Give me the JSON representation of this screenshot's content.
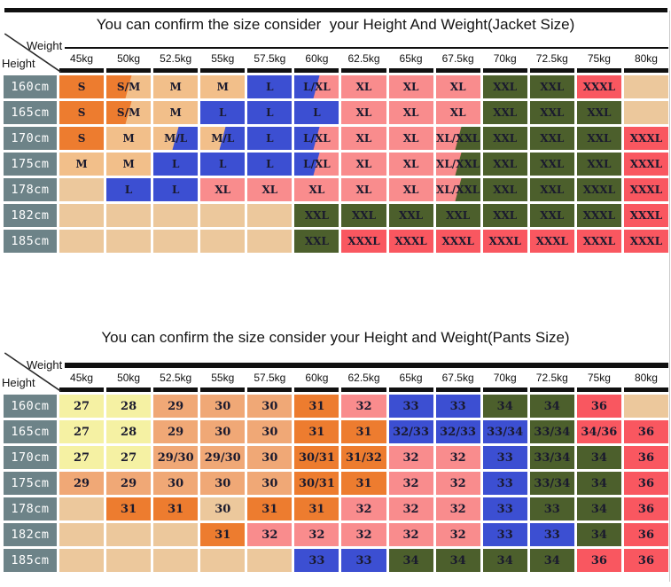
{
  "palette": {
    "orange": "#ed7c2f",
    "tan": "#f2bf8a",
    "sand": "#ecc89c",
    "blue": "#3c4fd2",
    "pink": "#f98c8d",
    "green": "#4c5f2c",
    "red": "#f95760",
    "yellow": "#f5f1a3",
    "salmon": "#f0a876",
    "slate": "#6d8388",
    "line": "#101010"
  },
  "chart_data": [
    {
      "type": "table",
      "title": "You can confirm the size consider  your Height And Weight(Jacket Size)",
      "corner": {
        "weight": "Weight",
        "height": "Height"
      },
      "columns": [
        "45kg",
        "50kg",
        "52.5kg",
        "55kg",
        "57.5kg",
        "60kg",
        "62.5kg",
        "65kg",
        "67.5kg",
        "70kg",
        "72.5kg",
        "75kg",
        "80kg"
      ],
      "rows": [
        {
          "label": "160cm",
          "cells": [
            [
              "S",
              "orange"
            ],
            [
              "S/M",
              "orange",
              "tan"
            ],
            [
              "M",
              "tan"
            ],
            [
              "M",
              "tan"
            ],
            [
              "L",
              "blue"
            ],
            [
              "L/XL",
              "blue",
              "pink"
            ],
            [
              "XL",
              "pink"
            ],
            [
              "XL",
              "pink"
            ],
            [
              "XL",
              "pink"
            ],
            [
              "XXL",
              "green"
            ],
            [
              "XXL",
              "green"
            ],
            [
              "XXXL",
              "red"
            ],
            [
              "",
              "sand"
            ]
          ]
        },
        {
          "label": "165cm",
          "cells": [
            [
              "S",
              "orange"
            ],
            [
              "S/M",
              "orange",
              "tan"
            ],
            [
              "M",
              "tan"
            ],
            [
              "L",
              "blue"
            ],
            [
              "L",
              "blue"
            ],
            [
              "L",
              "blue"
            ],
            [
              "XL",
              "pink"
            ],
            [
              "XL",
              "pink"
            ],
            [
              "XL",
              "pink"
            ],
            [
              "XXL",
              "green"
            ],
            [
              "XXL",
              "green"
            ],
            [
              "XXL",
              "green"
            ],
            [
              "",
              "sand"
            ]
          ]
        },
        {
          "label": "170cm",
          "cells": [
            [
              "S",
              "orange"
            ],
            [
              "M",
              "tan"
            ],
            [
              "M/L",
              "tan",
              "blue"
            ],
            [
              "M/L",
              "tan",
              "blue"
            ],
            [
              "L",
              "blue"
            ],
            [
              "L/XL",
              "blue",
              "pink"
            ],
            [
              "XL",
              "pink"
            ],
            [
              "XL",
              "pink"
            ],
            [
              "XL/XXL",
              "pink",
              "green"
            ],
            [
              "XXL",
              "green"
            ],
            [
              "XXL",
              "green"
            ],
            [
              "XXL",
              "green"
            ],
            [
              "XXXL",
              "red"
            ]
          ]
        },
        {
          "label": "175cm",
          "cells": [
            [
              "M",
              "tan"
            ],
            [
              "M",
              "tan"
            ],
            [
              "L",
              "blue"
            ],
            [
              "L",
              "blue"
            ],
            [
              "L",
              "blue"
            ],
            [
              "L/XL",
              "blue",
              "pink"
            ],
            [
              "XL",
              "pink"
            ],
            [
              "XL",
              "pink"
            ],
            [
              "XL/XXL",
              "pink",
              "green"
            ],
            [
              "XXL",
              "green"
            ],
            [
              "XXL",
              "green"
            ],
            [
              "XXL",
              "green"
            ],
            [
              "XXXL",
              "red"
            ]
          ]
        },
        {
          "label": "178cm",
          "cells": [
            [
              "",
              "sand"
            ],
            [
              "L",
              "blue"
            ],
            [
              "L",
              "blue"
            ],
            [
              "XL",
              "pink"
            ],
            [
              "XL",
              "pink"
            ],
            [
              "XL",
              "pink"
            ],
            [
              "XL",
              "pink"
            ],
            [
              "XL",
              "pink"
            ],
            [
              "XL/XXL",
              "pink",
              "green"
            ],
            [
              "XXL",
              "green"
            ],
            [
              "XXL",
              "green"
            ],
            [
              "XXXL",
              "green"
            ],
            [
              "XXXL",
              "red"
            ]
          ]
        },
        {
          "label": "182cm",
          "cells": [
            [
              "",
              "sand"
            ],
            [
              "",
              "sand"
            ],
            [
              "",
              "sand"
            ],
            [
              "",
              "sand"
            ],
            [
              "",
              "sand"
            ],
            [
              "XXL",
              "green"
            ],
            [
              "XXL",
              "green"
            ],
            [
              "XXL",
              "green"
            ],
            [
              "XXL",
              "green"
            ],
            [
              "XXL",
              "green"
            ],
            [
              "XXL",
              "green"
            ],
            [
              "XXXL",
              "green"
            ],
            [
              "XXXL",
              "red"
            ]
          ]
        },
        {
          "label": "185cm",
          "cells": [
            [
              "",
              "sand"
            ],
            [
              "",
              "sand"
            ],
            [
              "",
              "sand"
            ],
            [
              "",
              "sand"
            ],
            [
              "",
              "sand"
            ],
            [
              "XXL",
              "green"
            ],
            [
              "XXXL",
              "red"
            ],
            [
              "XXXL",
              "red"
            ],
            [
              "XXXL",
              "red"
            ],
            [
              "XXXL",
              "red"
            ],
            [
              "XXXL",
              "red"
            ],
            [
              "XXXL",
              "red"
            ],
            [
              "XXXL",
              "red"
            ]
          ]
        }
      ]
    },
    {
      "type": "table",
      "title": "You can confirm the size consider your Height and Weight(Pants Size)",
      "corner": {
        "weight": "Weight",
        "height": "Height"
      },
      "columns": [
        "45kg",
        "50kg",
        "52.5kg",
        "55kg",
        "57.5kg",
        "60kg",
        "62.5kg",
        "65kg",
        "67.5kg",
        "70kg",
        "72.5kg",
        "75kg",
        "80kg"
      ],
      "rows": [
        {
          "label": "160cm",
          "cells": [
            [
              "27",
              "yellow"
            ],
            [
              "28",
              "yellow"
            ],
            [
              "29",
              "salmon"
            ],
            [
              "30",
              "salmon"
            ],
            [
              "30",
              "salmon"
            ],
            [
              "31",
              "orange"
            ],
            [
              "32",
              "pink"
            ],
            [
              "33",
              "blue"
            ],
            [
              "33",
              "blue"
            ],
            [
              "34",
              "green"
            ],
            [
              "34",
              "green"
            ],
            [
              "36",
              "red"
            ],
            [
              "",
              "sand"
            ]
          ]
        },
        {
          "label": "165cm",
          "cells": [
            [
              "27",
              "yellow"
            ],
            [
              "28",
              "yellow"
            ],
            [
              "29",
              "salmon"
            ],
            [
              "30",
              "salmon"
            ],
            [
              "30",
              "salmon"
            ],
            [
              "31",
              "orange"
            ],
            [
              "31",
              "orange"
            ],
            [
              "32/33",
              "blue"
            ],
            [
              "32/33",
              "blue"
            ],
            [
              "33/34",
              "blue"
            ],
            [
              "33/34",
              "green"
            ],
            [
              "34/36",
              "red"
            ],
            [
              "36",
              "red"
            ]
          ]
        },
        {
          "label": "170cm",
          "cells": [
            [
              "27",
              "yellow"
            ],
            [
              "27",
              "yellow"
            ],
            [
              "29/30",
              "salmon"
            ],
            [
              "29/30",
              "salmon"
            ],
            [
              "30",
              "salmon"
            ],
            [
              "30/31",
              "orange"
            ],
            [
              "31/32",
              "orange"
            ],
            [
              "32",
              "pink"
            ],
            [
              "32",
              "pink"
            ],
            [
              "33",
              "blue"
            ],
            [
              "33/34",
              "green"
            ],
            [
              "34",
              "green"
            ],
            [
              "36",
              "red"
            ]
          ]
        },
        {
          "label": "175cm",
          "cells": [
            [
              "29",
              "salmon"
            ],
            [
              "29",
              "salmon"
            ],
            [
              "30",
              "salmon"
            ],
            [
              "30",
              "salmon"
            ],
            [
              "30",
              "salmon"
            ],
            [
              "30/31",
              "orange"
            ],
            [
              "31",
              "orange"
            ],
            [
              "32",
              "pink"
            ],
            [
              "32",
              "pink"
            ],
            [
              "33",
              "blue"
            ],
            [
              "33/34",
              "green"
            ],
            [
              "34",
              "green"
            ],
            [
              "36",
              "red"
            ]
          ]
        },
        {
          "label": "178cm",
          "cells": [
            [
              "",
              "sand"
            ],
            [
              "31",
              "orange"
            ],
            [
              "31",
              "orange"
            ],
            [
              "30",
              "sand"
            ],
            [
              "31",
              "orange"
            ],
            [
              "31",
              "orange"
            ],
            [
              "32",
              "pink"
            ],
            [
              "32",
              "pink"
            ],
            [
              "32",
              "pink"
            ],
            [
              "33",
              "blue"
            ],
            [
              "33",
              "green"
            ],
            [
              "34",
              "green"
            ],
            [
              "36",
              "red"
            ]
          ]
        },
        {
          "label": "182cm",
          "cells": [
            [
              "",
              "sand"
            ],
            [
              "",
              "sand"
            ],
            [
              "",
              "sand"
            ],
            [
              "31",
              "orange"
            ],
            [
              "32",
              "pink"
            ],
            [
              "32",
              "pink"
            ],
            [
              "32",
              "pink"
            ],
            [
              "32",
              "pink"
            ],
            [
              "32",
              "pink"
            ],
            [
              "33",
              "blue"
            ],
            [
              "33",
              "blue"
            ],
            [
              "34",
              "green"
            ],
            [
              "36",
              "red"
            ]
          ]
        },
        {
          "label": "185cm",
          "cells": [
            [
              "",
              "sand"
            ],
            [
              "",
              "sand"
            ],
            [
              "",
              "sand"
            ],
            [
              "",
              "sand"
            ],
            [
              "",
              "sand"
            ],
            [
              "33",
              "blue"
            ],
            [
              "33",
              "blue"
            ],
            [
              "34",
              "green"
            ],
            [
              "34",
              "green"
            ],
            [
              "34",
              "green"
            ],
            [
              "34",
              "green"
            ],
            [
              "36",
              "red"
            ],
            [
              "36",
              "red"
            ]
          ]
        }
      ]
    }
  ]
}
